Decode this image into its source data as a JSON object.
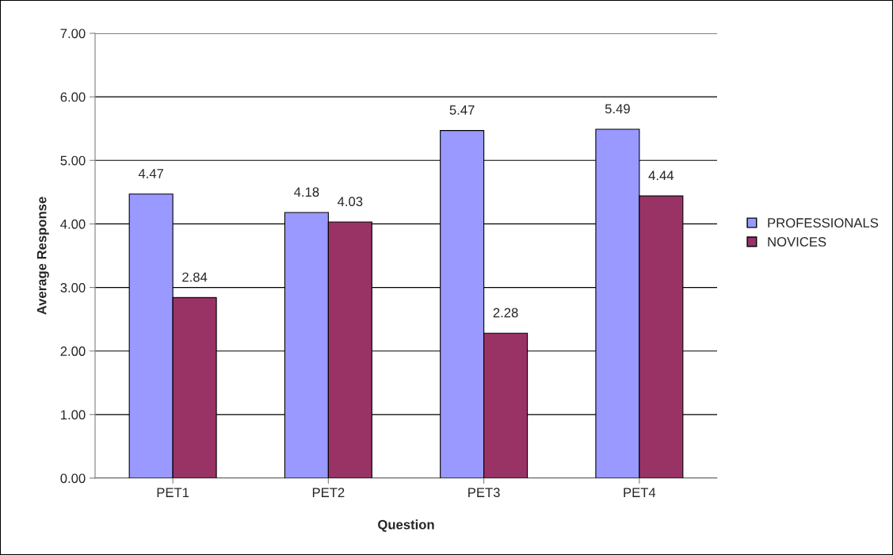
{
  "chart_data": {
    "type": "bar",
    "xlabel": "Question",
    "ylabel": "Average Response",
    "categories": [
      "PET1",
      "PET2",
      "PET3",
      "PET4"
    ],
    "series": [
      {
        "name": "PROFESSIONALS",
        "color": "#9999ff",
        "values": [
          4.47,
          4.18,
          5.47,
          5.49
        ]
      },
      {
        "name": "NOVICES",
        "color": "#993366",
        "values": [
          2.84,
          4.03,
          2.28,
          4.44
        ]
      }
    ],
    "ylim": [
      0,
      7
    ],
    "yticks": [
      {
        "value": 0,
        "label": "0.00"
      },
      {
        "value": 1,
        "label": "1.00"
      },
      {
        "value": 2,
        "label": "2.00"
      },
      {
        "value": 3,
        "label": "3.00"
      },
      {
        "value": 4,
        "label": "4.00"
      },
      {
        "value": 5,
        "label": "5.00"
      },
      {
        "value": 6,
        "label": "6.00"
      },
      {
        "value": 7,
        "label": "7.00"
      }
    ],
    "grid": "y",
    "legend": "right",
    "data_labels": true
  }
}
